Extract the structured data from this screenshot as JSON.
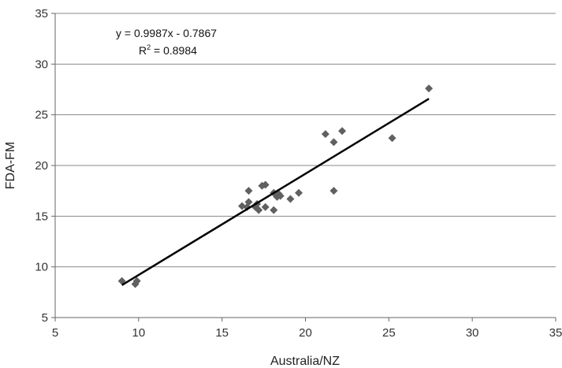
{
  "chart_data": {
    "type": "scatter",
    "xlabel": "Australia/NZ",
    "ylabel": "FDA-FM",
    "xlim": [
      5,
      35
    ],
    "ylim": [
      5,
      35
    ],
    "xticks": [
      5,
      10,
      15,
      20,
      25,
      30,
      35
    ],
    "yticks": [
      5,
      10,
      15,
      20,
      25,
      30,
      35
    ],
    "grid": "horizontal",
    "marker": "diamond",
    "marker_color": "#606060",
    "line_color": "#000000",
    "points": [
      {
        "x": 9.0,
        "y": 8.6
      },
      {
        "x": 9.8,
        "y": 8.3
      },
      {
        "x": 9.9,
        "y": 8.6
      },
      {
        "x": 16.2,
        "y": 16.0
      },
      {
        "x": 16.5,
        "y": 15.9
      },
      {
        "x": 16.6,
        "y": 16.4
      },
      {
        "x": 16.6,
        "y": 17.5
      },
      {
        "x": 17.0,
        "y": 15.9
      },
      {
        "x": 17.1,
        "y": 16.2
      },
      {
        "x": 17.2,
        "y": 15.6
      },
      {
        "x": 17.4,
        "y": 18.0
      },
      {
        "x": 17.6,
        "y": 15.9
      },
      {
        "x": 17.6,
        "y": 18.1
      },
      {
        "x": 18.1,
        "y": 15.6
      },
      {
        "x": 18.1,
        "y": 17.3
      },
      {
        "x": 18.3,
        "y": 16.9
      },
      {
        "x": 18.4,
        "y": 17.2
      },
      {
        "x": 18.5,
        "y": 17.0
      },
      {
        "x": 19.1,
        "y": 16.7
      },
      {
        "x": 19.6,
        "y": 17.3
      },
      {
        "x": 21.2,
        "y": 23.1
      },
      {
        "x": 21.7,
        "y": 22.3
      },
      {
        "x": 21.7,
        "y": 17.5
      },
      {
        "x": 22.2,
        "y": 23.4
      },
      {
        "x": 25.2,
        "y": 22.7
      },
      {
        "x": 27.4,
        "y": 27.6
      }
    ],
    "trendline": {
      "x_start": 9.0,
      "x_end": 27.4,
      "slope": 0.9987,
      "intercept": -0.7867
    },
    "equation": "y = 0.9987x - 0.7867",
    "r_squared_label": "R",
    "r_squared_exp": "2",
    "r_squared_value": " = 0.8984"
  }
}
